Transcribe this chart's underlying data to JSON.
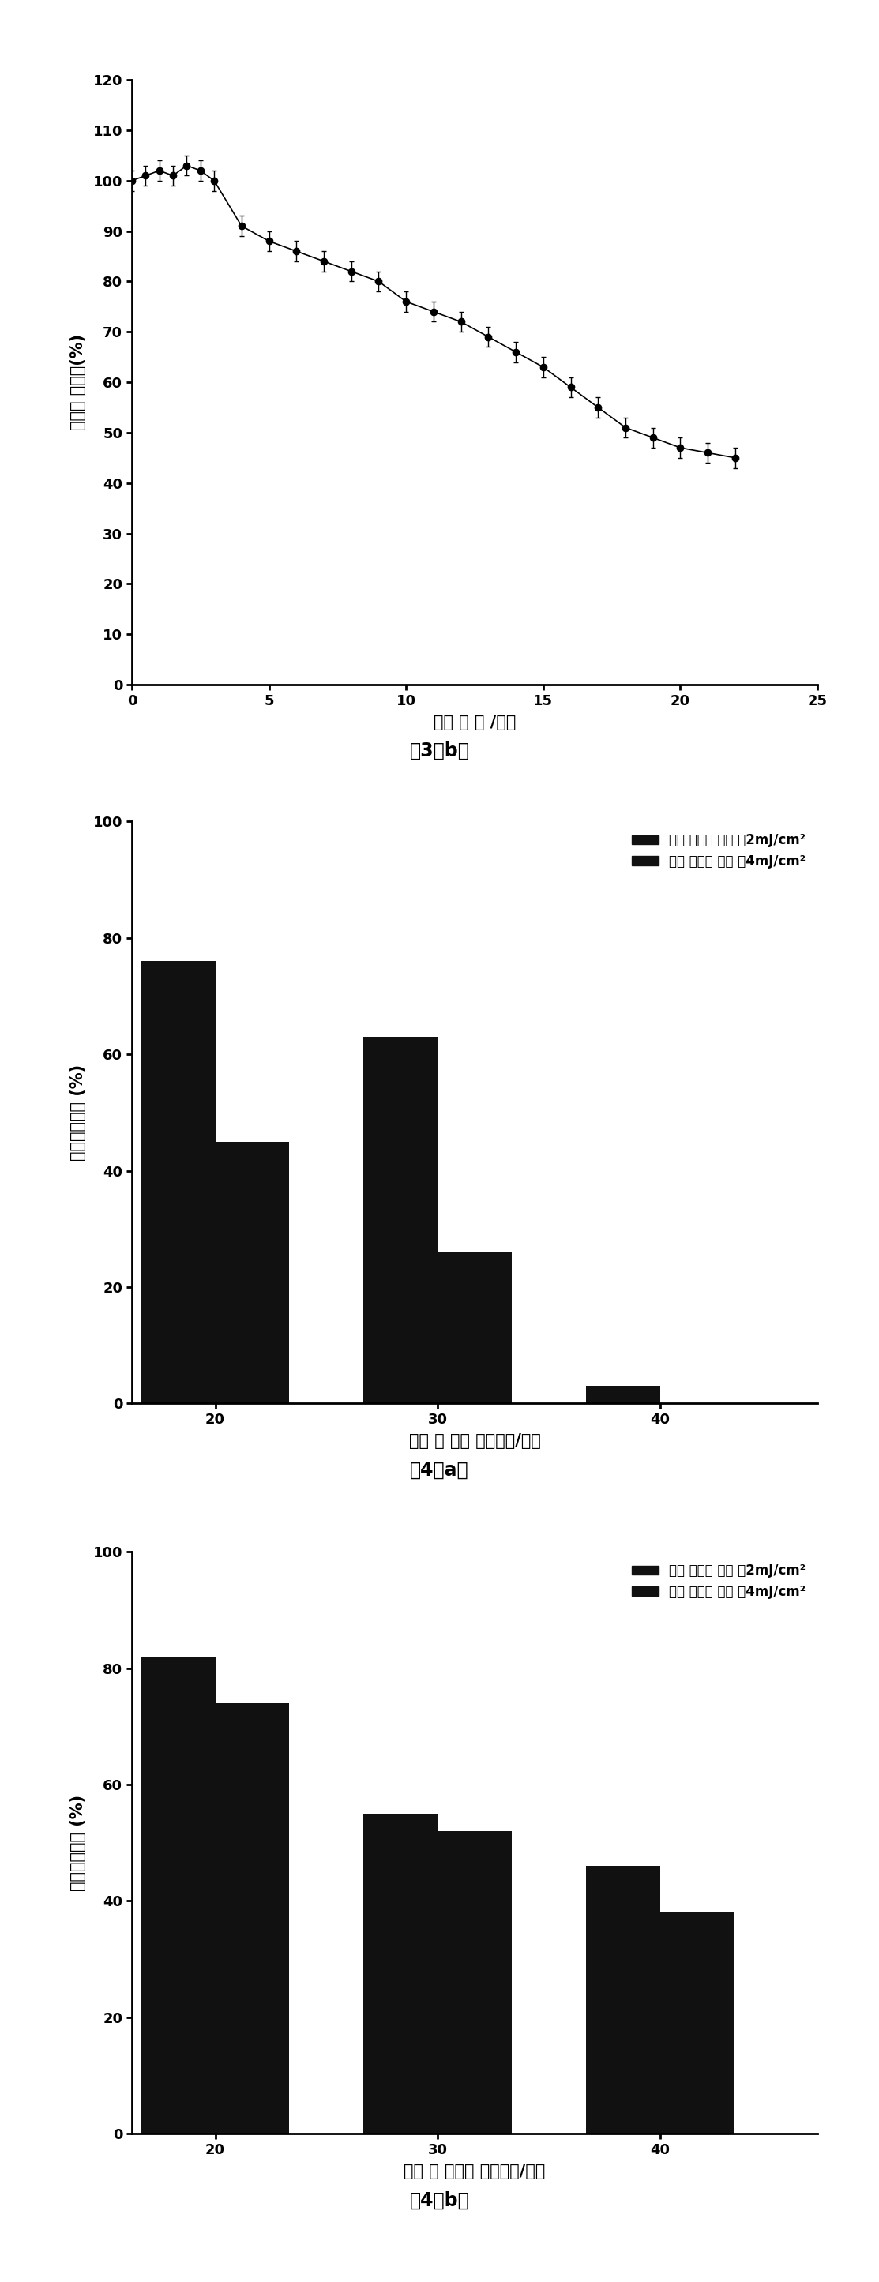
{
  "fig3b": {
    "x": [
      0,
      0.5,
      1,
      1.5,
      2,
      2.5,
      3,
      4,
      5,
      6,
      7,
      8,
      9,
      10,
      11,
      12,
      13,
      14,
      15,
      16,
      17,
      18,
      19,
      20,
      21,
      22
    ],
    "y": [
      100,
      101,
      102,
      101,
      103,
      102,
      100,
      91,
      88,
      86,
      84,
      82,
      80,
      76,
      74,
      72,
      69,
      66,
      63,
      59,
      55,
      51,
      49,
      47,
      46,
      45
    ],
    "yerr": [
      2,
      2,
      2,
      2,
      2,
      2,
      2,
      2,
      2,
      2,
      2,
      2,
      2,
      2,
      2,
      2,
      2,
      2,
      2,
      2,
      2,
      2,
      2,
      2,
      2,
      2
    ],
    "xlabel": "光照 时 间 /分钟",
    "ylabel": "血管径 的变化(%)",
    "caption": "图3（b）",
    "xlim": [
      0,
      25
    ],
    "ylim": [
      0,
      120
    ],
    "ytick_vals": [
      0,
      10,
      20,
      30,
      40,
      50,
      60,
      70,
      80,
      90,
      100,
      110,
      120
    ],
    "ytick_labels": [
      "0",
      "10",
      "20",
      "30",
      "40",
      "50",
      "60",
      "70",
      "80",
      "90",
      "100",
      "110",
      "120"
    ],
    "xticks": [
      0,
      5,
      10,
      15,
      20,
      25
    ]
  },
  "fig4a": {
    "categories": [
      20,
      30,
      40
    ],
    "series1": [
      76,
      63,
      3
    ],
    "series2": [
      45,
      26,
      0
    ],
    "legend1": "光剂 量为每 个脉 儦2mJ/cm²",
    "legend2": "光剂 量为每 个脉 儦4mJ/cm²",
    "xlabel": "光敏 剂 浓度 （微摩尔/升）",
    "ylabel": "血管径的改变 (%)",
    "caption": "图4（a）",
    "ylim": [
      0,
      100
    ],
    "yticks": [
      0,
      20,
      40,
      60,
      80,
      100
    ]
  },
  "fig4b": {
    "categories": [
      20,
      30,
      40
    ],
    "series1": [
      82,
      55,
      46
    ],
    "series2": [
      74,
      52,
      38
    ],
    "legend1": "光剂 量为每 个脉 儦2mJ/cm²",
    "legend2": "光剂 量为每 个脉 儦4mJ/cm²",
    "xlabel": "光敏 剂 量浓度 （微摩尔/升）",
    "ylabel": "血管径的改变 (%)",
    "caption": "图4（b）",
    "ylim": [
      0,
      100
    ],
    "yticks": [
      0,
      20,
      40,
      60,
      80,
      100
    ]
  },
  "bar_color1": "#111111",
  "bar_color2": "#111111",
  "line_color": "#000000",
  "marker_color": "#000000",
  "bg_color": "#ffffff",
  "font_size_label": 15,
  "font_size_tick": 13,
  "font_size_caption": 17,
  "font_size_legend": 12
}
